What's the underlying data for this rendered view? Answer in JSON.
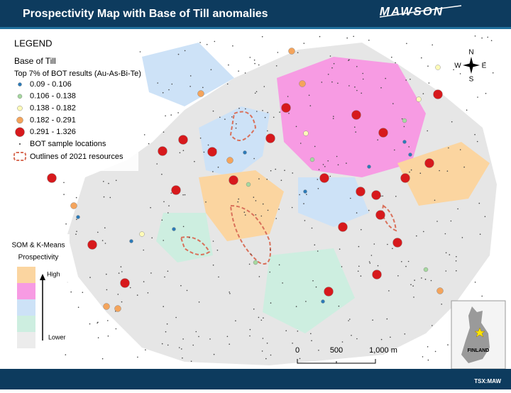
{
  "header": {
    "title": "Prospectivity Map with Base of Till anomalies",
    "logo": "MAWSON"
  },
  "legend": {
    "title": "LEGEND",
    "subtitle": "Base of Till",
    "caption": "Top 7% of BOT results (Au-As-Bi-Te)",
    "items": [
      {
        "label": "0.09 - 0.106",
        "color": "#2b7bb9"
      },
      {
        "label": "0.106 - 0.138",
        "color": "#a6d9a0"
      },
      {
        "label": "0.138 - 0.182",
        "color": "#fffbb8"
      },
      {
        "label": "0.182 - 0.291",
        "color": "#f4a45c"
      },
      {
        "label": "0.291 - 1.326",
        "color": "#d7191c"
      }
    ],
    "samples": "BOT sample locations",
    "outlines": "Outlines of 2021 resources"
  },
  "prospectivity": {
    "title": "SOM & K-Means",
    "subtitle": "Prospectivity",
    "high": "High",
    "low": "Lower",
    "colors": [
      "#fbd5a0",
      "#f79be3",
      "#cde2f7",
      "#cdeee0",
      "#ececec"
    ]
  },
  "compass": {
    "n": "N",
    "s": "S",
    "e": "E",
    "w": "W"
  },
  "scale": {
    "ticks": [
      "0",
      "500",
      "1,000 m"
    ]
  },
  "inset": {
    "label": "FINLAND"
  },
  "footer": {
    "ticker": "TSX:MAW"
  }
}
